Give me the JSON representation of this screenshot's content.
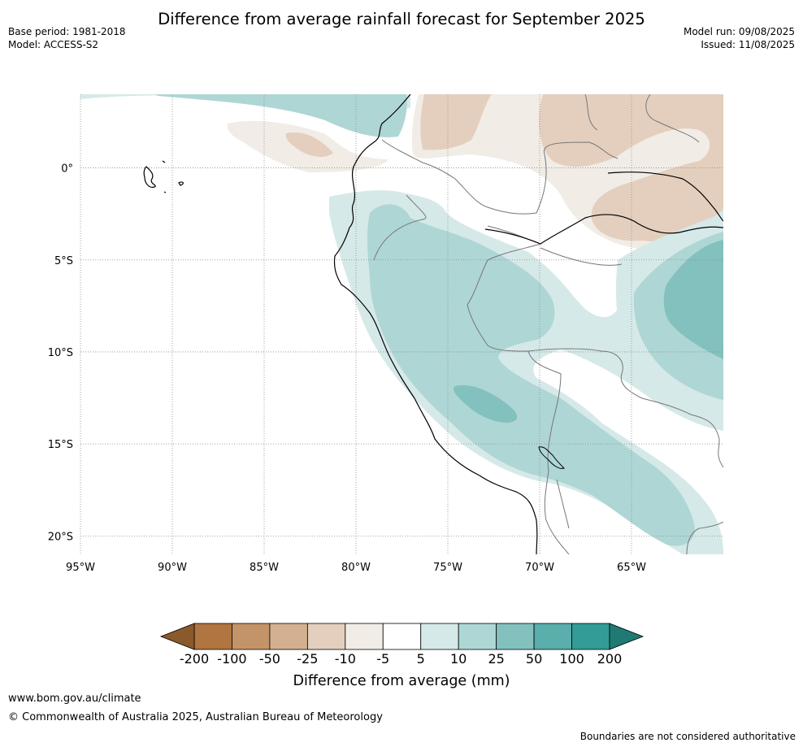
{
  "header": {
    "title": "Difference from average rainfall forecast for September 2025",
    "base_period": "Base period: 1981-2018",
    "model": "Model: ACCESS-S2",
    "model_run": "Model run: 09/08/2025",
    "issued": "Issued: 11/08/2025"
  },
  "map": {
    "lon_range": [
      -95,
      -60
    ],
    "lat_range": [
      -21,
      4
    ],
    "lon_ticks": [
      {
        "value": -95,
        "label": "95°W"
      },
      {
        "value": -90,
        "label": "90°W"
      },
      {
        "value": -85,
        "label": "85°W"
      },
      {
        "value": -80,
        "label": "80°W"
      },
      {
        "value": -75,
        "label": "75°W"
      },
      {
        "value": -70,
        "label": "70°W"
      },
      {
        "value": -65,
        "label": "65°W"
      }
    ],
    "lat_ticks": [
      {
        "value": 0,
        "label": "0°"
      },
      {
        "value": -5,
        "label": "5°S"
      },
      {
        "value": -10,
        "label": "10°S"
      },
      {
        "value": -15,
        "label": "15°S"
      },
      {
        "value": -20,
        "label": "20°S"
      }
    ],
    "gridlines": true
  },
  "colorbar": {
    "title": "Difference from average (mm)",
    "ticks": [
      "-200",
      "-100",
      "-50",
      "-25",
      "-10",
      "-5",
      "5",
      "10",
      "25",
      "50",
      "100",
      "200"
    ],
    "colors": {
      "below_min": "#8b5a2b",
      "bins": [
        "#b07540",
        "#c39467",
        "#d3b08f",
        "#e4cfbe",
        "#f1ece6",
        "#ffffff",
        "#d5e9e8",
        "#aed6d5",
        "#82c1be",
        "#5aaeab",
        "#339c96"
      ],
      "above_max": "#1f7a74"
    }
  },
  "footer": {
    "url": "www.bom.gov.au/climate",
    "copyright": "© Commonwealth of Australia 2025, Australian Bureau of Meteorology",
    "note": "Boundaries are not considered authoritative"
  }
}
